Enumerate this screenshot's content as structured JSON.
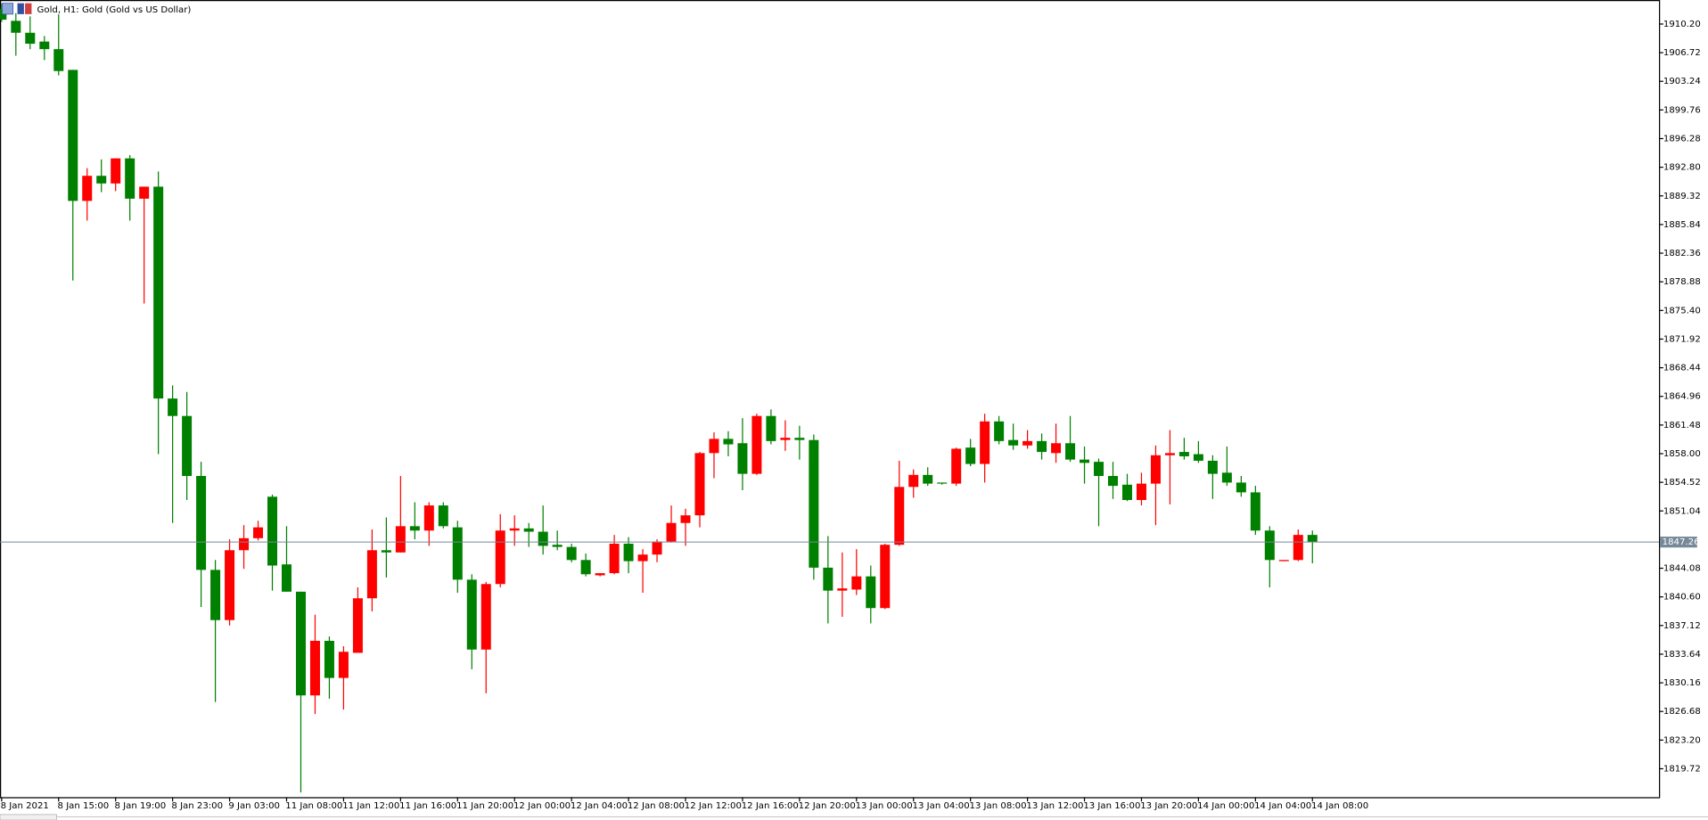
{
  "chart_data": {
    "type": "candlestick",
    "title": "Gold, H1:  Gold (Gold vs US Dollar)",
    "up_color": "#ff0000",
    "down_color": "#008000",
    "current_price": 1847.26,
    "current_price_color": "#778899",
    "ylim": [
      1816.27,
      1913.12
    ],
    "yticks": [
      {
        "value": 1910.2,
        "label": "1910.20"
      },
      1906.72,
      1903.24,
      1899.76,
      1896.28,
      {
        "value": 1892.8,
        "label": "1892.80"
      },
      1889.32,
      1885.84,
      1882.36,
      1878.88,
      {
        "value": 1875.4,
        "label": "1875.40"
      },
      1871.92,
      1868.44,
      1864.96,
      1861.48,
      {
        "value": 1858,
        "label": "1858.00"
      },
      1854.52,
      1851.04,
      1844.08,
      {
        "value": 1840.6,
        "label": "1840.60"
      },
      1837.12,
      1833.64,
      1830.16,
      1826.68,
      {
        "value": 1823.2,
        "label": "1823.20"
      },
      1819.72
    ],
    "categories": [
      "8 Jan 2021",
      null,
      null,
      null,
      "8 Jan 15:00",
      null,
      null,
      null,
      "8 Jan 19:00",
      null,
      null,
      null,
      "8 Jan 23:00",
      null,
      null,
      null,
      "9 Jan 03:00",
      null,
      null,
      null,
      "11 Jan 08:00",
      null,
      null,
      null,
      "11 Jan 12:00",
      null,
      null,
      null,
      "11 Jan 16:00",
      null,
      null,
      null,
      "11 Jan 20:00",
      null,
      null,
      null,
      "12 Jan 00:00",
      null,
      null,
      null,
      "12 Jan 04:00",
      null,
      null,
      null,
      "12 Jan 08:00",
      null,
      null,
      null,
      "12 Jan 12:00",
      null,
      null,
      null,
      "12 Jan 16:00",
      null,
      null,
      null,
      "12 Jan 20:00",
      null,
      null,
      null,
      "13 Jan 00:00",
      null,
      null,
      null,
      "13 Jan 04:00",
      null,
      null,
      null,
      "13 Jan 08:00",
      null,
      null,
      null,
      "13 Jan 12:00",
      null,
      null,
      null,
      "13 Jan 16:00",
      null,
      null,
      null,
      "13 Jan 20:00",
      null,
      null,
      null,
      "14 Jan 00:00",
      null,
      null,
      null,
      "14 Jan 04:00",
      null,
      null,
      null,
      "14 Jan 08:00"
    ],
    "open": [
      1912.05,
      1910.59,
      1909.14,
      1908.07,
      1907.15,
      1904.63,
      1888.71,
      1891.76,
      1890.83,
      1893.88,
      1888.98,
      1890.44,
      1864.7,
      1862.58,
      1855.29,
      1843.88,
      1837.78,
      1846.27,
      1847.73,
      1852.77,
      1844.55,
      1841.23,
      1828.63,
      1835.26,
      1830.75,
      1833.8,
      1840.43,
      1846.27,
      1846.0,
      1849.19,
      1848.66,
      1851.71,
      1849.05,
      1842.69,
      1834.2,
      1842.16,
      1848.66,
      1848.92,
      1848.52,
      1846.93,
      1846.67,
      1845.08,
      1843.22,
      1843.48,
      1847.06,
      1844.94,
      1845.74,
      1847.33,
      1849.58,
      1850.51,
      1858.07,
      1859.8,
      1859.27,
      1855.55,
      1862.58,
      1859.66,
      1859.93,
      1859.66,
      1844.15,
      1841.36,
      1841.49,
      1843.09,
      1839.24,
      1846.93,
      1853.96,
      1855.42,
      1854.49,
      1854.36,
      1858.74,
      1856.75,
      1861.92,
      1859.66,
      1859.0,
      1859.53,
      1858.07,
      1859.27,
      1857.28,
      1857.01,
      1855.29,
      1854.23,
      1852.37,
      1854.36,
      1857.81,
      1858.21,
      1857.94,
      1857.14,
      1855.69,
      1854.49,
      1853.3,
      1848.66,
      1844.94,
      1845.08,
      1848.13
    ],
    "high": [
      1912.72,
      1911.52,
      1911.13,
      1908.74,
      1911.39,
      1904.63,
      1892.69,
      1893.75,
      1893.88,
      1894.28,
      1890.44,
      1892.29,
      1866.3,
      1865.5,
      1857.01,
      1845.08,
      1847.6,
      1849.32,
      1849.85,
      1853.03,
      1849.19,
      1841.23,
      1838.44,
      1835.79,
      1834.6,
      1841.76,
      1848.79,
      1850.25,
      1855.29,
      1852.1,
      1852.1,
      1852.1,
      1849.85,
      1843.35,
      1842.42,
      1850.65,
      1850.51,
      1849.58,
      1851.71,
      1848.66,
      1847.06,
      1845.87,
      1843.48,
      1848.13,
      1847.86,
      1846.4,
      1847.6,
      1851.71,
      1851.31,
      1858.21,
      1860.59,
      1860.73,
      1862.32,
      1862.85,
      1863.38,
      1862.05,
      1861.39,
      1860.33,
      1847.99,
      1846.0,
      1846.4,
      1844.41,
      1847.06,
      1857.14,
      1856.08,
      1856.35,
      1854.49,
      1858.74,
      1859.8,
      1862.85,
      1862.58,
      1861.65,
      1860.86,
      1860.46,
      1861.65,
      1862.58,
      1858.87,
      1857.41,
      1857.01,
      1855.55,
      1855.69,
      1859.0,
      1860.86,
      1859.93,
      1859.53,
      1857.81,
      1858.87,
      1855.29,
      1854.09,
      1849.19,
      1845.08,
      1848.79,
      1848.66
    ],
    "low": [
      1910.46,
      1906.35,
      1907.15,
      1905.82,
      1903.96,
      1879.03,
      1886.32,
      1889.77,
      1889.9,
      1886.32,
      1876.24,
      1857.94,
      1849.58,
      1852.37,
      1839.37,
      1827.83,
      1837.12,
      1844.01,
      1847.46,
      1841.36,
      1841.23,
      1816.83,
      1826.37,
      1828.23,
      1826.91,
      1833.8,
      1838.84,
      1842.95,
      1846.0,
      1847.6,
      1846.8,
      1848.92,
      1841.1,
      1831.81,
      1828.89,
      1841.76,
      1846.8,
      1846.67,
      1845.74,
      1846.27,
      1844.81,
      1843.09,
      1843.09,
      1843.35,
      1843.48,
      1841.1,
      1844.81,
      1847.2,
      1846.8,
      1849.05,
      1855.02,
      1857.68,
      1853.56,
      1855.42,
      1859.13,
      1858.34,
      1857.28,
      1842.69,
      1837.38,
      1838.18,
      1840.83,
      1837.38,
      1839.11,
      1846.8,
      1852.64,
      1854.09,
      1854.23,
      1854.09,
      1856.48,
      1854.49,
      1859.13,
      1858.47,
      1858.6,
      1857.28,
      1856.88,
      1857.01,
      1854.36,
      1849.19,
      1852.5,
      1852.24,
      1851.71,
      1849.32,
      1851.84,
      1857.28,
      1856.88,
      1852.5,
      1854.09,
      1852.77,
      1848.13,
      1841.76,
      1844.94,
      1844.94,
      1844.68
    ],
    "close": [
      1910.73,
      1909.14,
      1907.81,
      1907.15,
      1904.49,
      1888.71,
      1891.76,
      1890.83,
      1893.88,
      1888.98,
      1890.44,
      1864.7,
      1862.58,
      1855.29,
      1843.88,
      1837.78,
      1846.27,
      1847.73,
      1849.05,
      1844.41,
      1841.23,
      1828.63,
      1835.26,
      1830.75,
      1833.93,
      1840.43,
      1846.27,
      1846.0,
      1849.19,
      1848.66,
      1851.71,
      1849.19,
      1842.69,
      1834.2,
      1842.16,
      1848.66,
      1848.92,
      1848.52,
      1846.8,
      1846.67,
      1845.08,
      1843.35,
      1843.48,
      1847.06,
      1844.94,
      1845.74,
      1847.33,
      1849.58,
      1850.51,
      1858.07,
      1859.8,
      1859.13,
      1855.55,
      1862.58,
      1859.53,
      1859.93,
      1859.66,
      1844.15,
      1841.36,
      1841.63,
      1843.09,
      1839.24,
      1846.93,
      1853.96,
      1855.42,
      1854.36,
      1854.36,
      1858.6,
      1856.75,
      1861.92,
      1859.53,
      1859.0,
      1859.53,
      1858.21,
      1859.27,
      1857.28,
      1856.88,
      1855.29,
      1854.09,
      1852.37,
      1854.36,
      1857.81,
      1858.07,
      1857.68,
      1857.14,
      1855.55,
      1854.49,
      1853.3,
      1848.66,
      1845.08,
      1845.08,
      1848.13,
      1847.26
    ]
  }
}
